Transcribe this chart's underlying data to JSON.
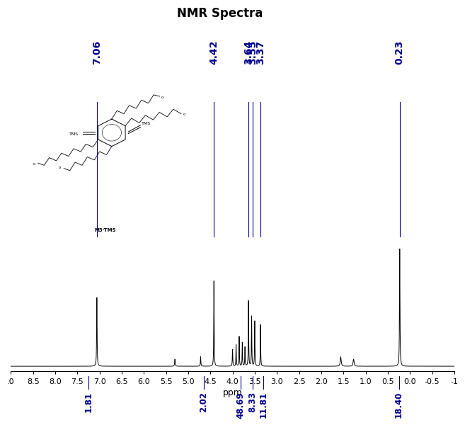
{
  "title": "NMR Spectra",
  "xlabel": "ppm",
  "xmin": -1.0,
  "xmax": 9.0,
  "xticks": [
    9.0,
    8.5,
    8.0,
    7.5,
    7.0,
    6.5,
    6.0,
    5.5,
    5.0,
    4.5,
    4.0,
    3.5,
    3.0,
    2.5,
    2.0,
    1.5,
    1.0,
    0.5,
    0.0,
    -0.5,
    -1.0
  ],
  "xtick_labels": [
    ".0",
    "8.5",
    "8.0",
    "7.5",
    "7.0",
    "6.5",
    "6.0",
    "5.5",
    "5.0",
    "4.5",
    "4.0",
    "3.5",
    "3.0",
    "2.5",
    "2.0",
    "1.5",
    "1.0",
    "0.5",
    "0.0",
    "-0.5",
    "-1"
  ],
  "peak_labels_top": [
    {
      "ppm": 7.06,
      "label": "7.06"
    },
    {
      "ppm": 4.42,
      "label": "4.42"
    },
    {
      "ppm": 3.64,
      "label": "3.64"
    },
    {
      "ppm": 3.55,
      "label": "3.55"
    },
    {
      "ppm": 3.37,
      "label": "3.37"
    },
    {
      "ppm": 0.23,
      "label": "0.23"
    }
  ],
  "integration_labels": [
    {
      "ppm": 7.25,
      "label": "1.81"
    },
    {
      "ppm": 4.65,
      "label": "2.02"
    },
    {
      "ppm": 3.82,
      "label": "48.69"
    },
    {
      "ppm": 3.55,
      "label": "8.33"
    },
    {
      "ppm": 3.3,
      "label": "11.81"
    },
    {
      "ppm": 0.25,
      "label": "18.40"
    }
  ],
  "label_color": "#00008B",
  "spectrum_color": "#000000",
  "background_color": "#ffffff",
  "title_fontsize": 12,
  "peak_label_fontsize": 10,
  "integ_fontsize": 8.5
}
